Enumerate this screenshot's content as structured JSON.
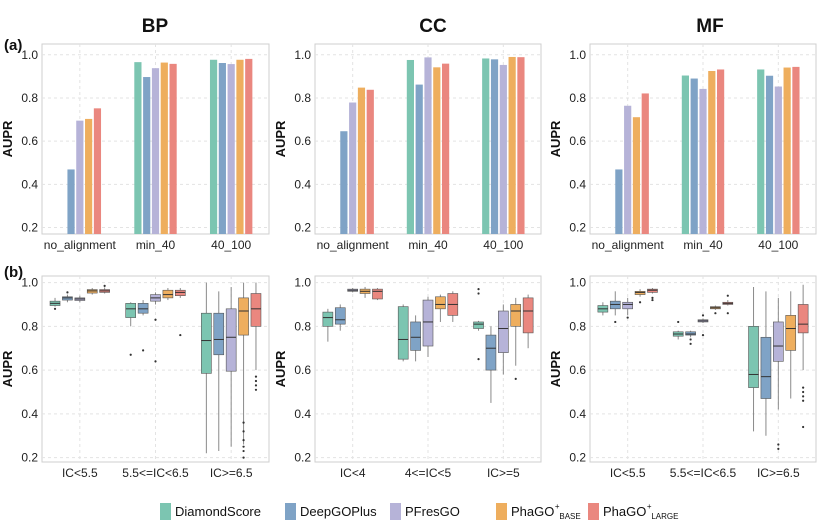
{
  "colors": {
    "DiamondScore": "#7cc5b1",
    "DeepGOPlus": "#7fa3c6",
    "PFresGO": "#b6b3d8",
    "PhaGO_BASE": "#eeae5e",
    "PhaGO_LARGE": "#ea877f"
  },
  "panel_labels": {
    "a": "(a)",
    "b": "(b)"
  },
  "legend": [
    {
      "name": "DiamondScore",
      "text": "DiamondScore",
      "sup": "",
      "sub": ""
    },
    {
      "name": "DeepGOPlus",
      "text": "DeepGOPlus",
      "sup": "",
      "sub": ""
    },
    {
      "name": "PFresGO",
      "text": "PFresGO",
      "sup": "",
      "sub": ""
    },
    {
      "name": "PhaGO_BASE",
      "text": "PhaGO",
      "sup": "+",
      "sub": "BASE"
    },
    {
      "name": "PhaGO_LARGE",
      "text": "PhaGO",
      "sup": "+",
      "sub": "LARGE"
    }
  ],
  "chart_data": [
    {
      "type": "bar",
      "panel": "a",
      "title": "BP",
      "ylabel": "AUPR",
      "ylim": [
        0.17,
        1.05
      ],
      "yticks": [
        0.2,
        0.4,
        0.6,
        0.8,
        1.0
      ],
      "ytick_labels": [
        "0.2",
        "0.4",
        "0.6",
        "0.8",
        "1.0"
      ],
      "categories": [
        "no_alignment",
        "min_40",
        "40_100"
      ],
      "series": [
        {
          "name": "DiamondScore",
          "values": [
            null,
            0.966,
            0.977
          ]
        },
        {
          "name": "DeepGOPlus",
          "values": [
            0.469,
            0.897,
            0.962
          ]
        },
        {
          "name": "PFresGO",
          "values": [
            0.695,
            0.938,
            0.957
          ]
        },
        {
          "name": "PhaGO_BASE",
          "values": [
            0.703,
            0.964,
            0.977
          ]
        },
        {
          "name": "PhaGO_LARGE",
          "values": [
            0.752,
            0.958,
            0.981
          ]
        }
      ]
    },
    {
      "type": "bar",
      "panel": "a",
      "title": "CC",
      "ylabel": "AUPR",
      "ylim": [
        0.17,
        1.05
      ],
      "yticks": [
        0.2,
        0.4,
        0.6,
        0.8,
        1.0
      ],
      "ytick_labels": [
        "0.2",
        "0.4",
        "0.6",
        "0.8",
        "1.0"
      ],
      "categories": [
        "no_alignment",
        "min_40",
        "40_100"
      ],
      "series": [
        {
          "name": "DiamondScore",
          "values": [
            null,
            0.976,
            0.983
          ]
        },
        {
          "name": "DeepGOPlus",
          "values": [
            0.646,
            0.862,
            0.979
          ]
        },
        {
          "name": "PFresGO",
          "values": [
            0.779,
            0.988,
            0.953
          ]
        },
        {
          "name": "PhaGO_BASE",
          "values": [
            0.848,
            0.942,
            0.99
          ]
        },
        {
          "name": "PhaGO_LARGE",
          "values": [
            0.838,
            0.959,
            0.989
          ]
        }
      ]
    },
    {
      "type": "bar",
      "panel": "a",
      "title": "MF",
      "ylabel": "AUPR",
      "ylim": [
        0.17,
        1.05
      ],
      "yticks": [
        0.2,
        0.4,
        0.6,
        0.8,
        1.0
      ],
      "ytick_labels": [
        "0.2",
        "0.4",
        "0.6",
        "0.8",
        "1.0"
      ],
      "categories": [
        "no_alignment",
        "min_40",
        "40_100"
      ],
      "series": [
        {
          "name": "DiamondScore",
          "values": [
            null,
            0.904,
            0.932
          ]
        },
        {
          "name": "DeepGOPlus",
          "values": [
            0.469,
            0.89,
            0.903
          ]
        },
        {
          "name": "PFresGO",
          "values": [
            0.764,
            0.842,
            0.853
          ]
        },
        {
          "name": "PhaGO_BASE",
          "values": [
            0.711,
            0.925,
            0.941
          ]
        },
        {
          "name": "PhaGO_LARGE",
          "values": [
            0.821,
            0.932,
            0.944
          ]
        }
      ]
    },
    {
      "type": "box",
      "panel": "b",
      "ylabel": "AUPR",
      "ylim": [
        0.18,
        1.03
      ],
      "yticks": [
        0.2,
        0.4,
        0.6,
        0.8,
        1.0
      ],
      "ytick_labels": [
        "0.2",
        "0.4",
        "0.6",
        "0.8",
        "1.0"
      ],
      "categories": [
        "IC<5.5",
        "5.5<=IC<6.5",
        "IC>=6.5"
      ],
      "groups": [
        [
          {
            "name": "DiamondScore",
            "whislo": 0.89,
            "q1": 0.895,
            "med": 0.905,
            "q3": 0.915,
            "whishi": 0.93,
            "fliers": [
              0.88
            ]
          },
          {
            "name": "DeepGOPlus",
            "whislo": 0.91,
            "q1": 0.92,
            "med": 0.93,
            "q3": 0.935,
            "whishi": 0.945,
            "fliers": [
              0.955
            ]
          },
          {
            "name": "PFresGO",
            "whislo": 0.91,
            "q1": 0.918,
            "med": 0.925,
            "q3": 0.93,
            "whishi": 0.94,
            "fliers": []
          },
          {
            "name": "PhaGO_BASE",
            "whislo": 0.945,
            "q1": 0.952,
            "med": 0.962,
            "q3": 0.968,
            "whishi": 0.975,
            "fliers": []
          },
          {
            "name": "PhaGO_LARGE",
            "whislo": 0.95,
            "q1": 0.955,
            "med": 0.962,
            "q3": 0.968,
            "whishi": 0.978,
            "fliers": [
              0.985
            ]
          }
        ],
        [
          {
            "name": "DiamondScore",
            "whislo": 0.8,
            "q1": 0.84,
            "med": 0.88,
            "q3": 0.905,
            "whishi": 0.91,
            "fliers": [
              0.67
            ]
          },
          {
            "name": "DeepGOPlus",
            "whislo": 0.85,
            "q1": 0.86,
            "med": 0.88,
            "q3": 0.905,
            "whishi": 0.92,
            "fliers": [
              0.69
            ]
          },
          {
            "name": "PFresGO",
            "whislo": 0.9,
            "q1": 0.915,
            "med": 0.93,
            "q3": 0.945,
            "whishi": 0.955,
            "fliers": [
              0.64,
              0.83
            ]
          },
          {
            "name": "PhaGO_BASE",
            "whislo": 0.92,
            "q1": 0.93,
            "med": 0.945,
            "q3": 0.965,
            "whishi": 0.975,
            "fliers": []
          },
          {
            "name": "PhaGO_LARGE",
            "whislo": 0.93,
            "q1": 0.94,
            "med": 0.955,
            "q3": 0.965,
            "whishi": 0.975,
            "fliers": [
              0.76
            ]
          }
        ],
        [
          {
            "name": "DiamondScore",
            "whislo": 0.22,
            "q1": 0.585,
            "med": 0.735,
            "q3": 0.86,
            "whishi": 1.0,
            "fliers": []
          },
          {
            "name": "DeepGOPlus",
            "whislo": 0.23,
            "q1": 0.67,
            "med": 0.74,
            "q3": 0.86,
            "whishi": 0.96,
            "fliers": []
          },
          {
            "name": "PFresGO",
            "whislo": 0.25,
            "q1": 0.595,
            "med": 0.75,
            "q3": 0.88,
            "whishi": 0.98,
            "fliers": []
          },
          {
            "name": "PhaGO_BASE",
            "whislo": 0.26,
            "q1": 0.76,
            "med": 0.87,
            "q3": 0.93,
            "whishi": 1.0,
            "fliers": [
              0.2,
              0.23,
              0.25,
              0.28,
              0.32,
              0.36
            ]
          },
          {
            "name": "PhaGO_LARGE",
            "whislo": 0.6,
            "q1": 0.8,
            "med": 0.88,
            "q3": 0.95,
            "whishi": 1.0,
            "fliers": [
              0.51,
              0.53,
              0.55,
              0.57
            ]
          }
        ]
      ]
    },
    {
      "type": "box",
      "panel": "b",
      "ylabel": "AUPR",
      "ylim": [
        0.18,
        1.03
      ],
      "yticks": [
        0.2,
        0.4,
        0.6,
        0.8,
        1.0
      ],
      "ytick_labels": [
        "0.2",
        "0.4",
        "0.6",
        "0.8",
        "1.0"
      ],
      "categories": [
        "IC<4",
        "4<=IC<5",
        "IC>=5"
      ],
      "groups": [
        [
          {
            "name": "DiamondScore",
            "whislo": 0.73,
            "q1": 0.8,
            "med": 0.84,
            "q3": 0.865,
            "whishi": 0.88,
            "fliers": []
          },
          {
            "name": "DeepGOPlus",
            "whislo": 0.78,
            "q1": 0.81,
            "med": 0.83,
            "q3": 0.885,
            "whishi": 0.9,
            "fliers": []
          },
          {
            "name": "PFresGO",
            "whislo": 0.955,
            "q1": 0.96,
            "med": 0.965,
            "q3": 0.97,
            "whishi": 0.975,
            "fliers": []
          },
          {
            "name": "PhaGO_BASE",
            "whislo": 0.93,
            "q1": 0.95,
            "med": 0.96,
            "q3": 0.97,
            "whishi": 0.98,
            "fliers": []
          },
          {
            "name": "PhaGO_LARGE",
            "whislo": 0.92,
            "q1": 0.925,
            "med": 0.96,
            "q3": 0.97,
            "whishi": 0.975,
            "fliers": []
          }
        ],
        [
          {
            "name": "DiamondScore",
            "whislo": 0.64,
            "q1": 0.65,
            "med": 0.74,
            "q3": 0.89,
            "whishi": 0.9,
            "fliers": []
          },
          {
            "name": "DeepGOPlus",
            "whislo": 0.64,
            "q1": 0.69,
            "med": 0.75,
            "q3": 0.82,
            "whishi": 0.85,
            "fliers": []
          },
          {
            "name": "PFresGO",
            "whislo": 0.66,
            "q1": 0.71,
            "med": 0.82,
            "q3": 0.92,
            "whishi": 0.935,
            "fliers": []
          },
          {
            "name": "PhaGO_BASE",
            "whislo": 0.82,
            "q1": 0.88,
            "med": 0.9,
            "q3": 0.935,
            "whishi": 0.945,
            "fliers": []
          },
          {
            "name": "PhaGO_LARGE",
            "whislo": 0.82,
            "q1": 0.85,
            "med": 0.9,
            "q3": 0.95,
            "whishi": 0.96,
            "fliers": []
          }
        ],
        [
          {
            "name": "DiamondScore",
            "whislo": 0.78,
            "q1": 0.79,
            "med": 0.81,
            "q3": 0.82,
            "whishi": 0.825,
            "fliers": [
              0.65,
              0.95,
              0.97
            ]
          },
          {
            "name": "DeepGOPlus",
            "whislo": 0.45,
            "q1": 0.6,
            "med": 0.7,
            "q3": 0.76,
            "whishi": 0.8,
            "fliers": []
          },
          {
            "name": "PFresGO",
            "whislo": 0.58,
            "q1": 0.68,
            "med": 0.79,
            "q3": 0.87,
            "whishi": 0.9,
            "fliers": []
          },
          {
            "name": "PhaGO_BASE",
            "whislo": 0.62,
            "q1": 0.8,
            "med": 0.87,
            "q3": 0.9,
            "whishi": 0.93,
            "fliers": [
              0.56
            ]
          },
          {
            "name": "PhaGO_LARGE",
            "whislo": 0.7,
            "q1": 0.77,
            "med": 0.87,
            "q3": 0.93,
            "whishi": 0.945,
            "fliers": []
          }
        ]
      ]
    },
    {
      "type": "box",
      "panel": "b",
      "ylabel": "AUPR",
      "ylim": [
        0.18,
        1.03
      ],
      "yticks": [
        0.2,
        0.4,
        0.6,
        0.8,
        1.0
      ],
      "ytick_labels": [
        "0.2",
        "0.4",
        "0.6",
        "0.8",
        "1.0"
      ],
      "categories": [
        "IC<5.5",
        "5.5<=IC<6.5",
        "IC>=6.5"
      ],
      "groups": [
        [
          {
            "name": "DiamondScore",
            "whislo": 0.85,
            "q1": 0.865,
            "med": 0.88,
            "q3": 0.895,
            "whishi": 0.91,
            "fliers": []
          },
          {
            "name": "DeepGOPlus",
            "whislo": 0.85,
            "q1": 0.88,
            "med": 0.9,
            "q3": 0.915,
            "whishi": 0.96,
            "fliers": [
              0.82
            ]
          },
          {
            "name": "PFresGO",
            "whislo": 0.85,
            "q1": 0.88,
            "med": 0.9,
            "q3": 0.91,
            "whishi": 0.93,
            "fliers": [
              0.84
            ]
          },
          {
            "name": "PhaGO_BASE",
            "whislo": 0.935,
            "q1": 0.945,
            "med": 0.955,
            "q3": 0.96,
            "whishi": 0.97,
            "fliers": [
              0.91
            ]
          },
          {
            "name": "PhaGO_LARGE",
            "whislo": 0.95,
            "q1": 0.955,
            "med": 0.965,
            "q3": 0.97,
            "whishi": 0.975,
            "fliers": [
              0.92,
              0.93
            ]
          }
        ],
        [
          {
            "name": "DiamondScore",
            "whislo": 0.74,
            "q1": 0.755,
            "med": 0.765,
            "q3": 0.775,
            "whishi": 0.78,
            "fliers": [
              0.82
            ]
          },
          {
            "name": "DeepGOPlus",
            "whislo": 0.75,
            "q1": 0.76,
            "med": 0.765,
            "q3": 0.775,
            "whishi": 0.78,
            "fliers": [
              0.72,
              0.74
            ]
          },
          {
            "name": "PFresGO",
            "whislo": 0.815,
            "q1": 0.82,
            "med": 0.825,
            "q3": 0.83,
            "whishi": 0.835,
            "fliers": [
              0.76,
              0.85
            ]
          },
          {
            "name": "PhaGO_BASE",
            "whislo": 0.875,
            "q1": 0.88,
            "med": 0.885,
            "q3": 0.89,
            "whishi": 0.895,
            "fliers": [
              0.86
            ]
          },
          {
            "name": "PhaGO_LARGE",
            "whislo": 0.895,
            "q1": 0.9,
            "med": 0.905,
            "q3": 0.91,
            "whishi": 0.92,
            "fliers": [
              0.86,
              0.94
            ]
          }
        ],
        [
          {
            "name": "DiamondScore",
            "whislo": 0.32,
            "q1": 0.52,
            "med": 0.58,
            "q3": 0.8,
            "whishi": 0.98,
            "fliers": []
          },
          {
            "name": "DeepGOPlus",
            "whislo": 0.3,
            "q1": 0.47,
            "med": 0.57,
            "q3": 0.75,
            "whishi": 0.96,
            "fliers": []
          },
          {
            "name": "PFresGO",
            "whislo": 0.42,
            "q1": 0.64,
            "med": 0.71,
            "q3": 0.82,
            "whishi": 0.93,
            "fliers": [
              0.24,
              0.26
            ]
          },
          {
            "name": "PhaGO_BASE",
            "whislo": 0.47,
            "q1": 0.69,
            "med": 0.79,
            "q3": 0.85,
            "whishi": 0.96,
            "fliers": []
          },
          {
            "name": "PhaGO_LARGE",
            "whislo": 0.6,
            "q1": 0.77,
            "med": 0.81,
            "q3": 0.9,
            "whishi": 0.99,
            "fliers": [
              0.34,
              0.46,
              0.48,
              0.5,
              0.52
            ]
          }
        ]
      ]
    }
  ]
}
